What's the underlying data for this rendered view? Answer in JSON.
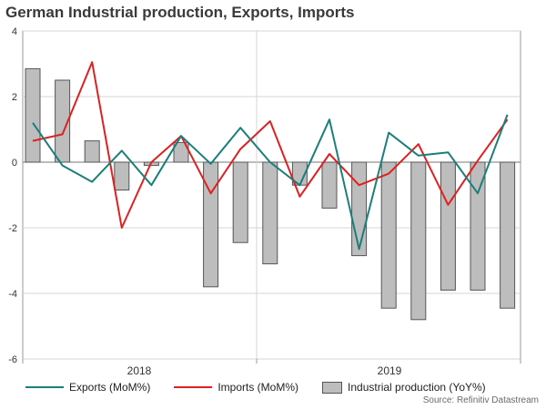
{
  "chart_data": {
    "type": "bar",
    "title": "German Industrial production, Exports, Imports",
    "source": "Source: Refinitiv Datastream",
    "ylim": [
      -6,
      4
    ],
    "yticks": [
      4,
      2,
      0,
      -2,
      -4,
      -6
    ],
    "x_year_labels": [
      "2018",
      "2019"
    ],
    "grid": true,
    "legend_position": "bottom",
    "series": [
      {
        "name": "Exports (MoM%)",
        "type": "line",
        "color": "#1a7f7a",
        "values": [
          1.2,
          -0.1,
          -0.6,
          0.35,
          -0.7,
          0.8,
          -0.05,
          1.05,
          0.0,
          -0.7,
          1.3,
          -2.65,
          0.9,
          0.2,
          0.3,
          -0.95,
          1.45
        ]
      },
      {
        "name": "Imports (MoM%)",
        "type": "line",
        "color": "#e02020",
        "values": [
          0.65,
          0.85,
          3.05,
          -2.0,
          0.0,
          0.8,
          -0.95,
          0.4,
          1.25,
          -1.05,
          0.25,
          -0.7,
          -0.35,
          0.55,
          -1.3,
          0.05,
          1.3
        ]
      },
      {
        "name": "Industrial production (YoY%)",
        "type": "bar",
        "color": "#bdbdbd",
        "values": [
          2.85,
          2.5,
          0.65,
          -0.85,
          -0.1,
          0.6,
          -3.8,
          -2.45,
          -3.1,
          -0.7,
          -1.4,
          -2.85,
          -4.45,
          -4.8,
          -3.9,
          -3.9,
          -4.45
        ]
      }
    ]
  }
}
